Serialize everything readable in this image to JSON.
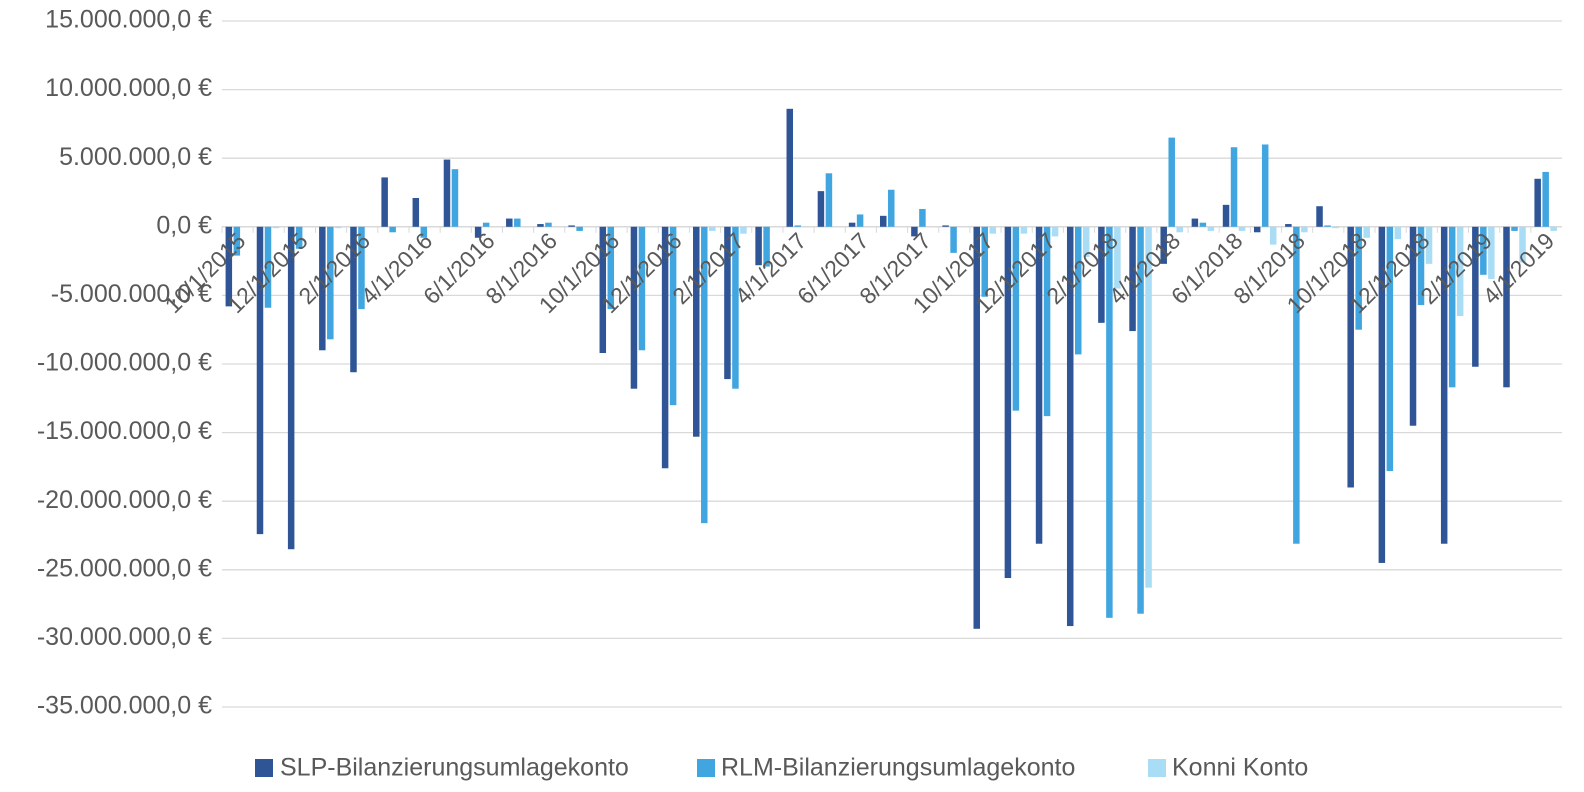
{
  "chart_data": {
    "type": "bar",
    "categories": [
      "10/1/2015",
      null,
      "12/1/2015",
      null,
      "2/1/2016",
      null,
      "4/1/2016",
      null,
      "6/1/2016",
      null,
      "8/1/2016",
      null,
      "10/1/2016",
      null,
      "12/1/2016",
      null,
      "2/1/2017",
      null,
      "4/1/2017",
      null,
      "6/1/2017",
      null,
      "8/1/2017",
      null,
      "10/1/2017",
      null,
      "12/1/2017",
      null,
      "2/1/2018",
      null,
      "4/1/2018",
      null,
      "6/1/2018",
      null,
      "8/1/2018",
      null,
      "10/1/2018",
      null,
      "12/1/2018",
      null,
      "2/1/2019",
      null,
      "4/1/2019"
    ],
    "series": [
      {
        "name": "SLP-Bilanzierungsumlagekonto",
        "color": "#2f5597",
        "values": [
          -5800000,
          -22400000,
          -23500000,
          -9000000,
          -10600000,
          3600000,
          2100000,
          4900000,
          -800000,
          600000,
          200000,
          100000,
          -9200000,
          -11800000,
          -17600000,
          -15300000,
          -11100000,
          -2800000,
          8600000,
          2600000,
          300000,
          800000,
          -700000,
          100000,
          -29300000,
          -25600000,
          -23100000,
          -29100000,
          -7000000,
          -7600000,
          -2700000,
          600000,
          1600000,
          -400000,
          200000,
          1500000,
          -19000000,
          -24500000,
          -14500000,
          -23100000,
          -10200000,
          -11700000,
          3500000
        ]
      },
      {
        "name": "RLM-Bilanzierungsumlagekonto",
        "color": "#41a6e0",
        "values": [
          -2100000,
          -5900000,
          -1600000,
          -8200000,
          -6000000,
          -400000,
          -800000,
          4200000,
          300000,
          600000,
          300000,
          -300000,
          -6000000,
          -9000000,
          -13000000,
          -21600000,
          -11800000,
          -2900000,
          100000,
          3900000,
          900000,
          2700000,
          1300000,
          -1900000,
          -5100000,
          -13400000,
          -13800000,
          -9300000,
          -28500000,
          -28200000,
          6500000,
          300000,
          5800000,
          6000000,
          -23100000,
          100000,
          -7500000,
          -17800000,
          -5700000,
          -11700000,
          -3500000,
          -300000,
          4000000
        ]
      },
      {
        "name": "Konni Konto",
        "color": "#a9dcf5",
        "values": [
          0,
          -100000,
          0,
          -100000,
          0,
          0,
          0,
          0,
          0,
          0,
          0,
          0,
          0,
          0,
          0,
          -300000,
          -500000,
          0,
          0,
          0,
          0,
          0,
          0,
          0,
          -500000,
          -500000,
          -700000,
          -2200000,
          -4500000,
          -26300000,
          -400000,
          -300000,
          -300000,
          -1300000,
          -400000,
          -100000,
          -800000,
          -900000,
          -2700000,
          -6500000,
          -3800000,
          -2600000,
          -300000
        ]
      }
    ],
    "ylim": [
      -37500000,
      16500000
    ],
    "yticks": [
      {
        "value": 15000000,
        "label": "15.000.000,0 €"
      },
      {
        "value": 10000000,
        "label": "10.000.000,0 €"
      },
      {
        "value": 5000000,
        "label": "5.000.000,0 €"
      },
      {
        "value": 0,
        "label": "0,0 €"
      },
      {
        "value": -5000000,
        "label": "-5.000.000,0 €"
      },
      {
        "value": -10000000,
        "label": "-10.000.000,0 €"
      },
      {
        "value": -15000000,
        "label": "-15.000.000,0 €"
      },
      {
        "value": -20000000,
        "label": "-20.000.000,0 €"
      },
      {
        "value": -25000000,
        "label": "-25.000.000,0 €"
      },
      {
        "value": -30000000,
        "label": "-30.000.000,0 €"
      },
      {
        "value": -35000000,
        "label": "-35.000.000,0 €"
      }
    ],
    "grid": true,
    "legend": "bottom"
  }
}
